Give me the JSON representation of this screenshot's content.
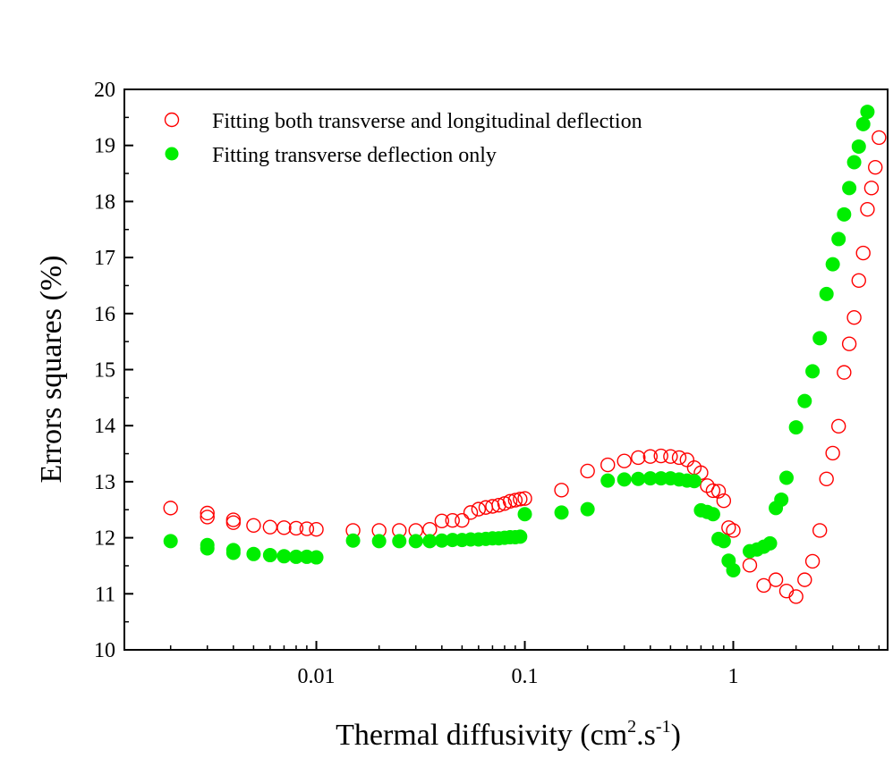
{
  "chart_data": {
    "type": "scatter",
    "xscale": "log",
    "xlim": [
      0.0012,
      5.5
    ],
    "ylim": [
      10,
      20
    ],
    "xlabel": "Thermal diffusivity (cm",
    "xlabel_sup1": "2",
    "xlabel_mid": ".s",
    "xlabel_sup2": "-1",
    "xlabel_end": ")",
    "ylabel": "Errors squares (%)",
    "x_ticks": [
      0.01,
      0.1,
      1
    ],
    "x_tick_labels": [
      "0.01",
      "0.1",
      "1"
    ],
    "y_ticks": [
      10,
      11,
      12,
      13,
      14,
      15,
      16,
      17,
      18,
      19,
      20
    ],
    "y_tick_labels": [
      "10",
      "11",
      "12",
      "13",
      "14",
      "15",
      "16",
      "17",
      "18",
      "19",
      "20"
    ],
    "legend_position": "top-left",
    "series": [
      {
        "name": "Fitting both transverse and longitudinal deflection",
        "marker": "open-circle",
        "color": "#ff0000",
        "x": [
          0.002,
          0.003,
          0.003,
          0.004,
          0.004,
          0.005,
          0.006,
          0.007,
          0.008,
          0.009,
          0.01,
          0.015,
          0.02,
          0.025,
          0.03,
          0.035,
          0.04,
          0.045,
          0.05,
          0.055,
          0.06,
          0.065,
          0.07,
          0.075,
          0.08,
          0.085,
          0.09,
          0.095,
          0.1,
          0.15,
          0.2,
          0.25,
          0.3,
          0.35,
          0.4,
          0.45,
          0.5,
          0.55,
          0.6,
          0.65,
          0.7,
          0.75,
          0.8,
          0.85,
          0.9,
          0.95,
          1.0,
          1.2,
          1.4,
          1.6,
          1.8,
          2.0,
          2.2,
          2.4,
          2.6,
          2.8,
          3.0,
          3.2,
          3.4,
          3.6,
          3.8,
          4.0,
          4.2,
          4.4,
          4.6,
          4.8,
          5.0
        ],
        "y": [
          12.53,
          12.44,
          12.37,
          12.32,
          12.27,
          12.22,
          12.19,
          12.18,
          12.17,
          12.16,
          12.15,
          12.13,
          12.13,
          12.13,
          12.13,
          12.15,
          12.3,
          12.31,
          12.31,
          12.45,
          12.51,
          12.54,
          12.56,
          12.58,
          12.61,
          12.65,
          12.67,
          12.69,
          12.7,
          12.85,
          13.19,
          13.3,
          13.37,
          13.43,
          13.45,
          13.46,
          13.45,
          13.43,
          13.39,
          13.25,
          13.16,
          12.93,
          12.84,
          12.83,
          12.66,
          12.18,
          12.13,
          11.51,
          11.15,
          11.25,
          11.05,
          10.95,
          11.25,
          11.58,
          12.13,
          13.05,
          13.51,
          13.99,
          14.95,
          15.46,
          15.93,
          16.59,
          17.08,
          17.86,
          18.24,
          18.61,
          19.14
        ]
      },
      {
        "name": "Fitting transverse deflection only",
        "marker": "filled-circle",
        "color": "#00ee00",
        "x": [
          0.002,
          0.003,
          0.003,
          0.004,
          0.004,
          0.005,
          0.006,
          0.007,
          0.008,
          0.009,
          0.01,
          0.015,
          0.02,
          0.025,
          0.03,
          0.035,
          0.04,
          0.045,
          0.05,
          0.055,
          0.06,
          0.065,
          0.07,
          0.075,
          0.08,
          0.085,
          0.09,
          0.095,
          0.1,
          0.15,
          0.2,
          0.25,
          0.3,
          0.35,
          0.4,
          0.45,
          0.5,
          0.55,
          0.6,
          0.65,
          0.7,
          0.75,
          0.8,
          0.85,
          0.9,
          0.95,
          1.0,
          1.2,
          1.3,
          1.4,
          1.5,
          1.6,
          1.7,
          1.8,
          2.0,
          2.2,
          2.4,
          2.6,
          2.8,
          3.0,
          3.2,
          3.4,
          3.6,
          3.8,
          4.0,
          4.2,
          4.4
        ],
        "y": [
          11.94,
          11.87,
          11.81,
          11.78,
          11.73,
          11.71,
          11.69,
          11.67,
          11.66,
          11.66,
          11.65,
          11.95,
          11.94,
          11.94,
          11.94,
          11.94,
          11.95,
          11.96,
          11.96,
          11.97,
          11.97,
          11.98,
          11.99,
          11.99,
          12.0,
          12.01,
          12.01,
          12.02,
          12.42,
          12.45,
          12.51,
          13.02,
          13.04,
          13.05,
          13.06,
          13.06,
          13.06,
          13.04,
          13.02,
          13.01,
          12.49,
          12.46,
          12.42,
          11.98,
          11.94,
          11.59,
          11.42,
          11.76,
          11.79,
          11.84,
          11.9,
          12.53,
          12.68,
          13.07,
          13.97,
          14.44,
          14.97,
          15.56,
          16.35,
          16.88,
          17.33,
          17.77,
          18.24,
          18.7,
          18.98,
          19.38,
          19.6
        ]
      }
    ]
  }
}
